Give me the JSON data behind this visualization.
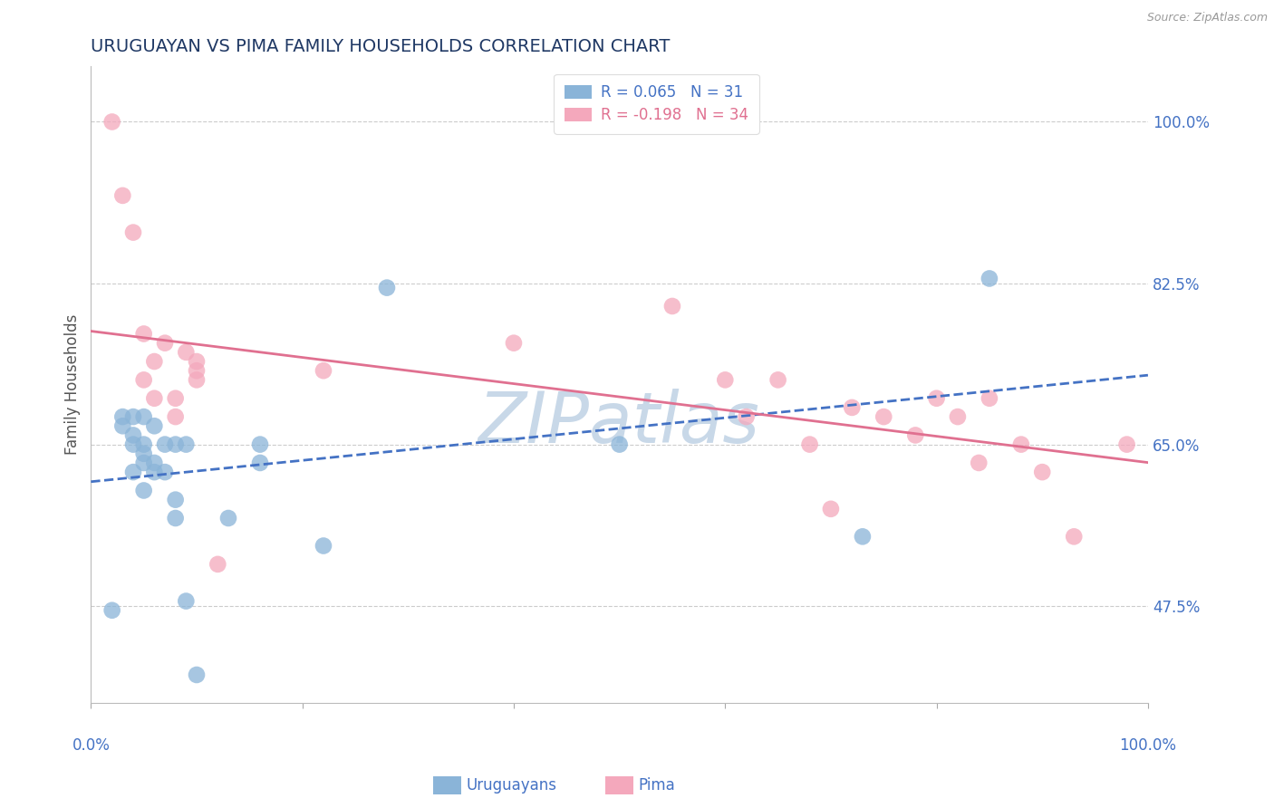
{
  "title": "URUGUAYAN VS PIMA FAMILY HOUSEHOLDS CORRELATION CHART",
  "source": "Source: ZipAtlas.com",
  "ylabel": "Family Households",
  "ytick_values": [
    1.0,
    0.825,
    0.65,
    0.475
  ],
  "xlim": [
    0.0,
    1.0
  ],
  "ylim": [
    0.37,
    1.06
  ],
  "blue_R": "0.065",
  "blue_N": "31",
  "pink_R": "-0.198",
  "pink_N": "34",
  "blue_color": "#8ab4d8",
  "pink_color": "#f4a8bc",
  "blue_line_color": "#4472c4",
  "pink_line_color": "#e07090",
  "title_color": "#1f3864",
  "label_color": "#4472c4",
  "grid_color": "#cccccc",
  "watermark_color": "#c8d8e8",
  "blue_x": [
    0.02,
    0.03,
    0.03,
    0.04,
    0.04,
    0.04,
    0.04,
    0.05,
    0.05,
    0.05,
    0.05,
    0.05,
    0.06,
    0.06,
    0.06,
    0.07,
    0.07,
    0.08,
    0.08,
    0.08,
    0.09,
    0.09,
    0.1,
    0.13,
    0.16,
    0.16,
    0.22,
    0.28,
    0.5,
    0.73,
    0.85
  ],
  "blue_y": [
    0.47,
    0.67,
    0.68,
    0.62,
    0.65,
    0.66,
    0.68,
    0.6,
    0.63,
    0.64,
    0.65,
    0.68,
    0.62,
    0.63,
    0.67,
    0.62,
    0.65,
    0.57,
    0.59,
    0.65,
    0.48,
    0.65,
    0.4,
    0.57,
    0.63,
    0.65,
    0.54,
    0.82,
    0.65,
    0.55,
    0.83
  ],
  "pink_x": [
    0.02,
    0.03,
    0.04,
    0.05,
    0.05,
    0.06,
    0.06,
    0.07,
    0.08,
    0.08,
    0.09,
    0.1,
    0.1,
    0.1,
    0.12,
    0.22,
    0.4,
    0.55,
    0.6,
    0.62,
    0.65,
    0.68,
    0.7,
    0.72,
    0.75,
    0.78,
    0.8,
    0.82,
    0.84,
    0.85,
    0.88,
    0.9,
    0.93,
    0.98
  ],
  "pink_y": [
    1.0,
    0.92,
    0.88,
    0.72,
    0.77,
    0.7,
    0.74,
    0.76,
    0.68,
    0.7,
    0.75,
    0.72,
    0.73,
    0.74,
    0.52,
    0.73,
    0.76,
    0.8,
    0.72,
    0.68,
    0.72,
    0.65,
    0.58,
    0.69,
    0.68,
    0.66,
    0.7,
    0.68,
    0.63,
    0.7,
    0.65,
    0.62,
    0.55,
    0.65
  ]
}
